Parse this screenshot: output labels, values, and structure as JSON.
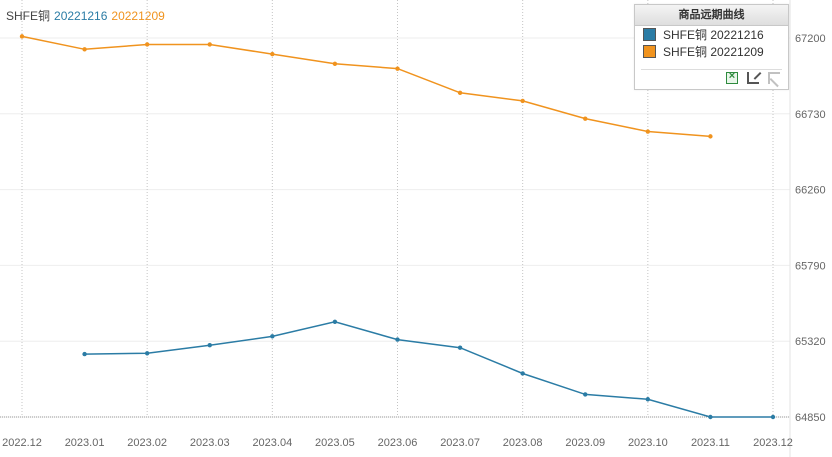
{
  "title": {
    "prefix": "SHFE铜",
    "date1": "20221216",
    "date2": "20221209"
  },
  "legend": {
    "title": "商品远期曲线",
    "items": [
      {
        "label": "SHFE铜 20221216",
        "color": "#2b7ca5"
      },
      {
        "label": "SHFE铜 20221209",
        "color": "#f0931e"
      }
    ],
    "tools": [
      "excel-export-icon",
      "crop-icon",
      "cursor-icon"
    ]
  },
  "chart_data": {
    "type": "line",
    "x": [
      "2022.12",
      "2023.01",
      "2023.02",
      "2023.03",
      "2023.04",
      "2023.05",
      "2023.06",
      "2023.07",
      "2023.08",
      "2023.09",
      "2023.10",
      "2023.11",
      "2023.12"
    ],
    "series": [
      {
        "name": "SHFE铜 20221216",
        "color": "#2b7ca5",
        "points": [
          {
            "x": "2023.01",
            "y": 65240
          },
          {
            "x": "2023.02",
            "y": 65245
          },
          {
            "x": "2023.03",
            "y": 65295
          },
          {
            "x": "2023.04",
            "y": 65350
          },
          {
            "x": "2023.05",
            "y": 65440
          },
          {
            "x": "2023.06",
            "y": 65330
          },
          {
            "x": "2023.07",
            "y": 65280
          },
          {
            "x": "2023.08",
            "y": 65120
          },
          {
            "x": "2023.09",
            "y": 64990
          },
          {
            "x": "2023.10",
            "y": 64960
          },
          {
            "x": "2023.11",
            "y": 64850
          },
          {
            "x": "2023.12",
            "y": 64850
          }
        ]
      },
      {
        "name": "SHFE铜 20221209",
        "color": "#f0931e",
        "points": [
          {
            "x": "2022.12",
            "y": 67210
          },
          {
            "x": "2023.01",
            "y": 67130
          },
          {
            "x": "2023.02",
            "y": 67160
          },
          {
            "x": "2023.03",
            "y": 67160
          },
          {
            "x": "2023.04",
            "y": 67100
          },
          {
            "x": "2023.05",
            "y": 67040
          },
          {
            "x": "2023.06",
            "y": 67010
          },
          {
            "x": "2023.07",
            "y": 66860
          },
          {
            "x": "2023.08",
            "y": 66810
          },
          {
            "x": "2023.09",
            "y": 66700
          },
          {
            "x": "2023.10",
            "y": 66620
          },
          {
            "x": "2023.11",
            "y": 66590
          }
        ]
      }
    ],
    "y_ticks": [
      64850,
      65320,
      65790,
      66260,
      66730,
      67200
    ],
    "ylim": [
      64850,
      67200
    ],
    "grid": true,
    "legend_position": "top-right"
  }
}
